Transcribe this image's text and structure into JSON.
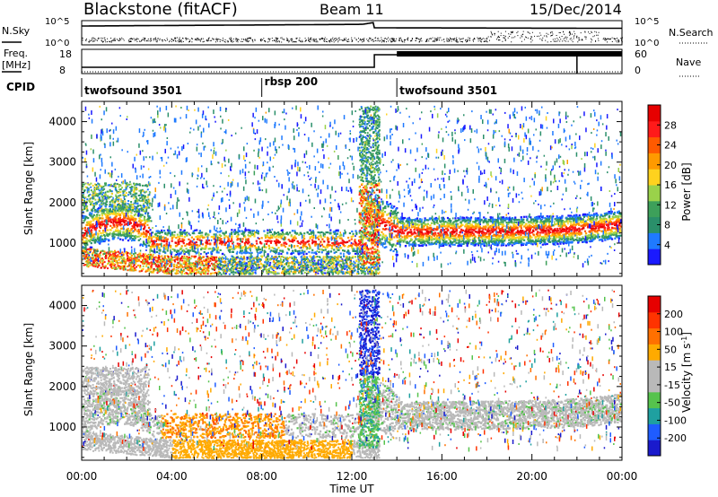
{
  "header": {
    "station": "Blackstone (fitACF)",
    "beam": "Beam 11",
    "date": "15/Dec/2014"
  },
  "aux_panels": {
    "nsky_label": "N.Sky",
    "nsearch_label": "N.Search",
    "nsky_ticks": [
      "10^5",
      "10^0"
    ],
    "nsearch_ticks": [
      "10^5",
      "10^0"
    ],
    "freq_label_1": "Freq.",
    "freq_label_2": "[MHz]",
    "freq_ticks": [
      "18",
      "8"
    ],
    "nave_label": "Nave",
    "nave_ticks": [
      "60",
      "0"
    ],
    "cpid_label": "CPID",
    "cpid_segments": [
      {
        "label": "twofsound 3501",
        "start_h": 0,
        "end_h": 8
      },
      {
        "label": "rbsp 200",
        "start_h": 8,
        "end_h": 14
      },
      {
        "label": "twofsound 3501",
        "start_h": 14,
        "end_h": 24
      }
    ]
  },
  "time_axis": {
    "label": "Time UT",
    "ticks": [
      "00:00",
      "04:00",
      "08:00",
      "12:00",
      "16:00",
      "20:00",
      "00:00"
    ]
  },
  "colors": {
    "power_scale": [
      "#1a1aff",
      "#1f7aff",
      "#2a8f6a",
      "#3da05a",
      "#9ad24a",
      "#ffd21e",
      "#ff9a00",
      "#ff5a00",
      "#ff1a1a",
      "#e60000"
    ],
    "velocity_scale": [
      "#1a1acc",
      "#1f5cff",
      "#1fa0a0",
      "#56c34d",
      "#b9b9b9",
      "#b9b9b9",
      "#ffaa00",
      "#ff7000",
      "#ff3300",
      "#e60000"
    ]
  },
  "chart_data": [
    {
      "type": "heatmap",
      "panel": "power",
      "ylabel": "Slant Range [km]",
      "x_range_h": [
        0,
        24
      ],
      "ylim": [
        180,
        4500
      ],
      "y_ticks": [
        1000,
        2000,
        3000,
        4000
      ],
      "colorbar": {
        "label": "Power [dB]",
        "ticks": [
          "28",
          "24",
          "20",
          "16",
          "12",
          "8",
          "4"
        ],
        "range": [
          0,
          30
        ]
      },
      "features": [
        {
          "name": "main band",
          "x_h": [
            0,
            24
          ],
          "range_km": [
            900,
            1800
          ]
        },
        {
          "name": "near-range band",
          "x_h": [
            0,
            13
          ],
          "range_km": [
            200,
            900
          ]
        },
        {
          "name": "noon spike",
          "x_h": [
            12.2,
            13.2
          ],
          "range_km": [
            500,
            4400
          ]
        }
      ]
    },
    {
      "type": "heatmap",
      "panel": "velocity",
      "ylabel": "Slant Range [km]",
      "x_range_h": [
        0,
        24
      ],
      "ylim": [
        180,
        4500
      ],
      "y_ticks": [
        1000,
        2000,
        3000,
        4000
      ],
      "colorbar": {
        "label": "Velocity [m s",
        "label_sup": "-1",
        "label_end": "]",
        "ticks": [
          "200",
          "100",
          "50",
          "15",
          "-15",
          "-50",
          "-100",
          "-200"
        ],
        "range": [
          -250,
          250
        ]
      }
    }
  ]
}
